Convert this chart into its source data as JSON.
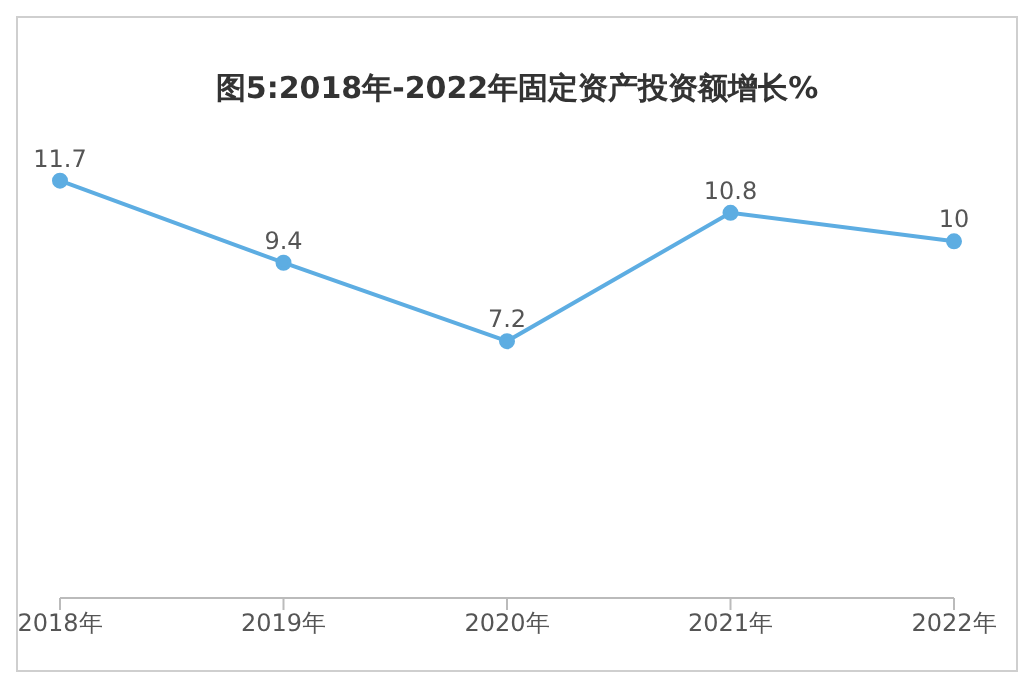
{
  "chart_data": {
    "type": "line",
    "title": "图5:2018年-2022年固定资产投资额增长%",
    "categories": [
      "2018年",
      "2019年",
      "2020年",
      "2021年",
      "2022年"
    ],
    "series": [
      {
        "color": "#5dade2",
        "values": [
          11.7,
          9.4,
          7.2,
          10.8,
          10
        ]
      }
    ],
    "tick_labels": "x",
    "data_labels": true,
    "marker": "circle",
    "line_style": "solid",
    "legend": false
  }
}
